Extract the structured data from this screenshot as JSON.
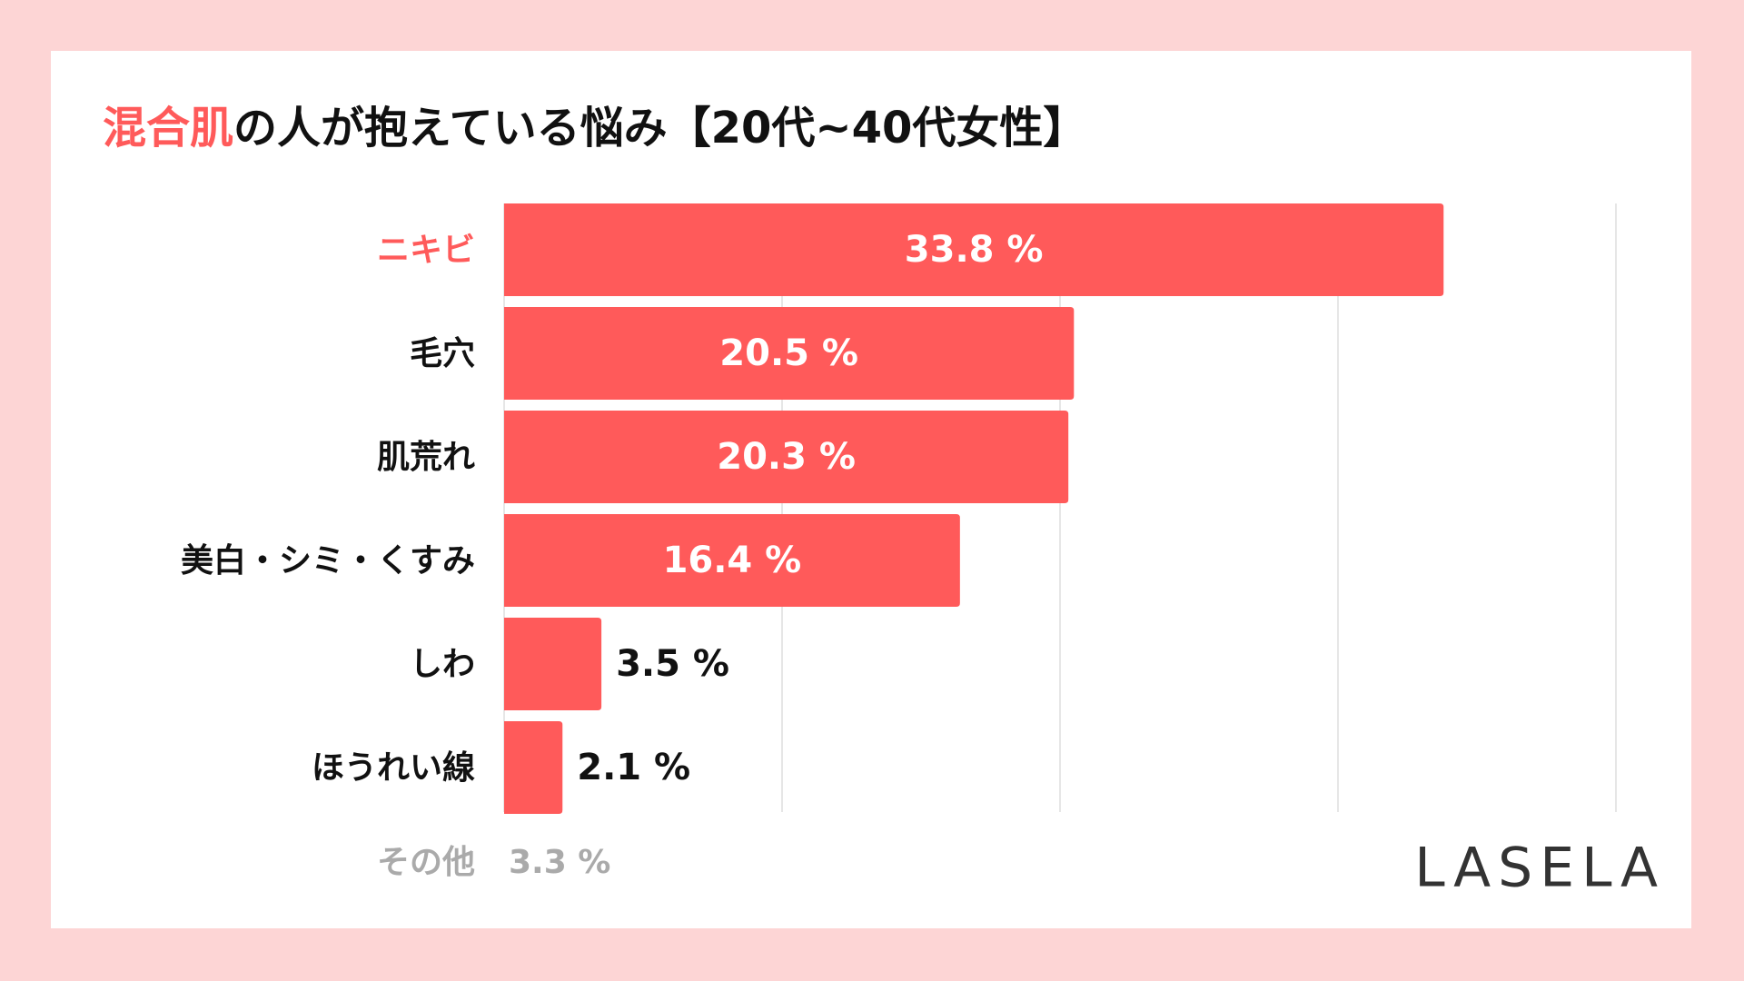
{
  "chart_data": {
    "type": "bar",
    "orientation": "horizontal",
    "title_parts": [
      "混合肌",
      "の人が抱えている悩み【20代~40代女性】"
    ],
    "categories": [
      "ニキビ",
      "毛穴",
      "肌荒れ",
      "美白・シミ・くすみ",
      "しわ",
      "ほうれい線"
    ],
    "values": [
      33.8,
      20.5,
      20.3,
      16.4,
      3.5,
      2.1
    ],
    "value_labels": [
      "33.8 %",
      "20.5 %",
      "20.3 %",
      "16.4 %",
      "3.5 %",
      "2.1 %"
    ],
    "color": "#ff5a5a",
    "highlight_index": 0,
    "xlim": [
      0,
      40
    ],
    "xticks": [
      0,
      10,
      20,
      30,
      40
    ],
    "grid": true,
    "other": {
      "name": "その他",
      "value": 3.3,
      "value_label": "3.3 %"
    }
  },
  "logo": "LASELA"
}
